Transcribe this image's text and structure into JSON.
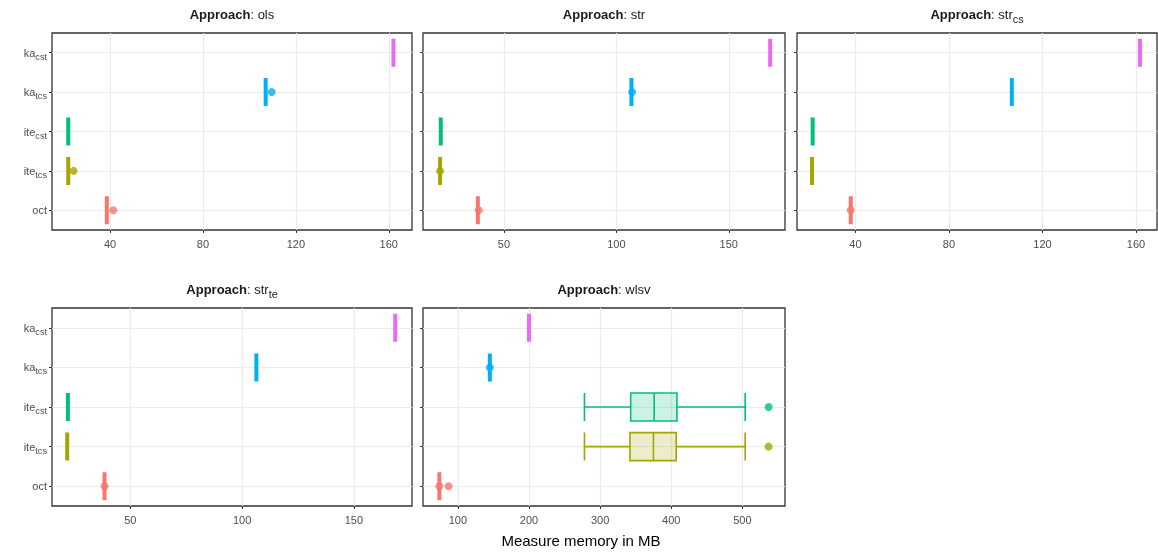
{
  "chart_data": [
    {
      "type": "box",
      "title": "Approach: ols",
      "orientation": "horizontal",
      "categories": [
        "ka$_{cst}$",
        "ka$_{tcs}$",
        "ite$_{cst}$",
        "ite$_{tcs}$",
        "oct"
      ],
      "colors": [
        "#e76bf3",
        "#00b0f6",
        "#00bf7d",
        "#a3a500",
        "#f8766d"
      ],
      "boxes": [
        {
          "low": 162,
          "q1": 162,
          "median": 162,
          "q3": 162,
          "high": 162
        },
        {
          "low": 107,
          "q1": 107,
          "median": 107,
          "q3": 107,
          "high": 107,
          "outliers": [
            109.6
          ]
        },
        {
          "low": 22,
          "q1": 22,
          "median": 22,
          "q3": 22,
          "high": 22
        },
        {
          "low": 22,
          "q1": 22,
          "median": 22,
          "q3": 22,
          "high": 22,
          "outliers": [
            24.3
          ]
        },
        {
          "low": 38.6,
          "q1": 38.6,
          "median": 38.6,
          "q3": 38.6,
          "high": 38.6,
          "outliers": [
            41.4
          ]
        }
      ],
      "xlim": [
        15,
        170
      ],
      "xticks": [
        40,
        80,
        120,
        160
      ],
      "grid": true
    },
    {
      "type": "box",
      "title": "Approach: str",
      "orientation": "horizontal",
      "categories": [
        null,
        null,
        null,
        null,
        null
      ],
      "colors": [
        "#e76bf3",
        "#00b0f6",
        "#00bf7d",
        "#a3a500",
        "#f8766d"
      ],
      "boxes": [
        {
          "low": 168.4,
          "q1": 168.4,
          "median": 168.4,
          "q3": 168.4,
          "high": 168.4
        },
        {
          "low": 106.7,
          "q1": 106.7,
          "median": 106.7,
          "q3": 106.7,
          "high": 106.7,
          "outliers": [
            107
          ]
        },
        {
          "low": 21.9,
          "q1": 21.9,
          "median": 21.9,
          "q3": 21.9,
          "high": 21.9
        },
        {
          "low": 21.6,
          "q1": 21.6,
          "median": 21.6,
          "q3": 21.6,
          "high": 21.6,
          "outliers": [
            21.6
          ]
        },
        {
          "low": 38.4,
          "q1": 38.4,
          "median": 38.4,
          "q3": 38.4,
          "high": 38.4,
          "outliers": [
            38.8
          ]
        }
      ],
      "xlim": [
        14,
        175
      ],
      "xticks": [
        50,
        100,
        150
      ],
      "grid": true,
      "tick_labels": "x"
    },
    {
      "type": "box",
      "title": "Approach: str$_{cs}$",
      "orientation": "horizontal",
      "categories": [
        null,
        null,
        null,
        null,
        null
      ],
      "colors": [
        "#e76bf3",
        "#00b0f6",
        "#00bf7d",
        "#a3a500",
        "#f8766d"
      ],
      "boxes": [
        {
          "low": 161.7,
          "q1": 161.7,
          "median": 161.7,
          "q3": 161.7,
          "high": 161.7
        },
        {
          "low": 106.9,
          "q1": 106.9,
          "median": 106.9,
          "q3": 106.9,
          "high": 106.9
        },
        {
          "low": 21.7,
          "q1": 21.7,
          "median": 21.7,
          "q3": 21.7,
          "high": 21.7
        },
        {
          "low": 21.4,
          "q1": 21.4,
          "median": 21.4,
          "q3": 21.4,
          "high": 21.4
        },
        {
          "low": 38,
          "q1": 38,
          "median": 38,
          "q3": 38,
          "high": 38,
          "outliers": [
            38
          ]
        }
      ],
      "xlim": [
        15,
        169
      ],
      "xticks": [
        40,
        80,
        120,
        160
      ],
      "grid": true,
      "tick_labels": "x"
    },
    {
      "type": "box",
      "title": "Approach: str$_{te}$",
      "orientation": "horizontal",
      "categories": [
        "ka$_{cst}$",
        "ka$_{tcs}$",
        "ite$_{cst}$",
        "ite$_{tcs}$",
        "oct"
      ],
      "colors": [
        "#e76bf3",
        "#00b0f6",
        "#00bf7d",
        "#a3a500",
        "#f8766d"
      ],
      "boxes": [
        {
          "low": 168.5,
          "q1": 168.5,
          "median": 168.5,
          "q3": 168.5,
          "high": 168.5
        },
        {
          "low": 106.4,
          "q1": 106.4,
          "median": 106.4,
          "q3": 106.4,
          "high": 106.4
        },
        {
          "low": 22.1,
          "q1": 22.1,
          "median": 22.1,
          "q3": 22.1,
          "high": 22.1
        },
        {
          "low": 21.8,
          "q1": 21.8,
          "median": 21.8,
          "q3": 21.8,
          "high": 21.8
        },
        {
          "low": 38.5,
          "q1": 38.5,
          "median": 38.5,
          "q3": 38.5,
          "high": 38.5,
          "outliers": [
            38.5
          ]
        }
      ],
      "xlim": [
        15,
        176
      ],
      "xticks": [
        50,
        100,
        150
      ],
      "grid": true
    },
    {
      "type": "box",
      "title": "Approach: wlsv",
      "orientation": "horizontal",
      "categories": [
        null,
        null,
        null,
        null,
        null
      ],
      "colors": [
        "#e76bf3",
        "#00b0f6",
        "#00bf7d",
        "#a3a500",
        "#f8766d"
      ],
      "boxes": [
        {
          "low": 200,
          "q1": 200,
          "median": 200,
          "q3": 200,
          "high": 200
        },
        {
          "low": 145,
          "q1": 145,
          "median": 145,
          "q3": 145,
          "high": 145,
          "outliers": [
            145
          ]
        },
        {
          "low": 278,
          "q1": 343,
          "median": 376,
          "q3": 408,
          "high": 504,
          "outliers": [
            537
          ]
        },
        {
          "low": 278,
          "q1": 342,
          "median": 375,
          "q3": 407,
          "high": 504,
          "outliers": [
            537
          ]
        },
        {
          "low": 74,
          "q1": 74,
          "median": 74,
          "q3": 74,
          "high": 74,
          "outliers": [
            74,
            87
          ]
        }
      ],
      "xlim": [
        51,
        560
      ],
      "xticks": [
        100,
        200,
        300,
        400,
        500
      ],
      "grid": true,
      "tick_labels": "x",
      "xlabel": "Measure memory in MB"
    }
  ]
}
